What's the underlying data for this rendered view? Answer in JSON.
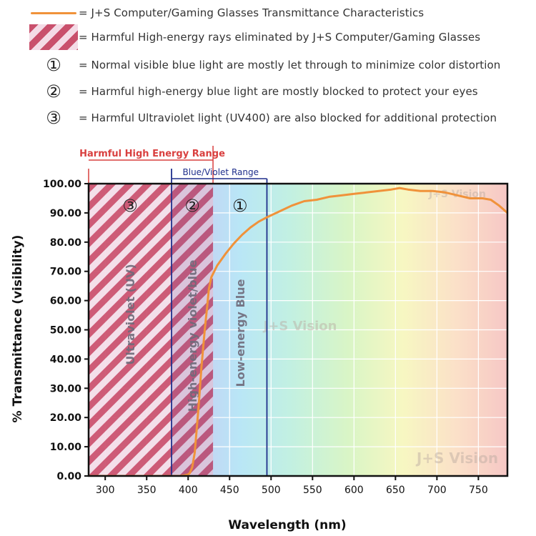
{
  "legend": {
    "line_text": "= J+S Computer/Gaming Glasses Transmittance Characteristics",
    "hatch_text": "= Harmful High-energy rays eliminated by J+S Computer/Gaming Glasses",
    "items": [
      {
        "marker": "①",
        "text": "= Normal visible blue light are mostly let through to minimize color distortion"
      },
      {
        "marker": "②",
        "text": "= Harmful high-energy blue light are mostly blocked to protect your eyes"
      },
      {
        "marker": "③",
        "text": "= Harmful Ultraviolet light (UV400) are also blocked for additional protection"
      }
    ]
  },
  "chart_data": {
    "type": "line",
    "xlabel": "Wavelength (nm)",
    "ylabel": "% Transmittance (visibility)",
    "xlim": [
      280,
      785
    ],
    "ylim": [
      0,
      100
    ],
    "xticks": [
      300,
      350,
      400,
      450,
      500,
      550,
      600,
      650,
      700,
      750
    ],
    "yticks": [
      0,
      10,
      20,
      30,
      40,
      50,
      60,
      70,
      80,
      90,
      100
    ],
    "ytick_labels": [
      "0.00",
      "10.00",
      "20.00",
      "30.00",
      "40.00",
      "50.00",
      "60.00",
      "70.00",
      "80.00",
      "90.00",
      "100.00"
    ],
    "grid": true,
    "line_color": "#f0923a",
    "series": [
      {
        "x": [
          280,
          390,
          395,
          400,
          402,
          405,
          408,
          410,
          413,
          416,
          420,
          423,
          425,
          428,
          435,
          445,
          455,
          465,
          475,
          485,
          495,
          510,
          525,
          540,
          555,
          570,
          585,
          600,
          615,
          630,
          645,
          655,
          665,
          680,
          695,
          710,
          725,
          740,
          755,
          765,
          775,
          785
        ],
        "y": [
          0,
          0,
          0.2,
          0.5,
          1,
          3,
          8,
          15,
          25,
          37,
          50,
          58,
          64,
          68,
          72,
          76,
          79.5,
          82.5,
          85,
          87,
          88.5,
          90.5,
          92.5,
          94,
          94.5,
          95.5,
          96,
          96.5,
          97,
          97.5,
          98,
          98.5,
          98,
          97.5,
          97.5,
          97,
          96,
          95,
          95,
          94.5,
          92.5,
          90
        ]
      }
    ],
    "regions": [
      {
        "label": "Harmful High Energy Range",
        "from": 280,
        "to": 430,
        "color": "#d9403f"
      },
      {
        "label": "Blue/Violet Range",
        "from": 380,
        "to": 495,
        "color": "#1f2f8c"
      }
    ],
    "bands": [
      {
        "marker": "③",
        "text": "Ultraviolet (UV)",
        "from": 280,
        "to": 380
      },
      {
        "marker": "②",
        "text": "High-energy violet/blue",
        "from": 380,
        "to": 430
      },
      {
        "marker": "①",
        "text": "Low-energy Blue",
        "from": 430,
        "to": 495
      }
    ],
    "watermarks": [
      "J+S Vision",
      "J+S Vision",
      "J+S Vision"
    ]
  }
}
